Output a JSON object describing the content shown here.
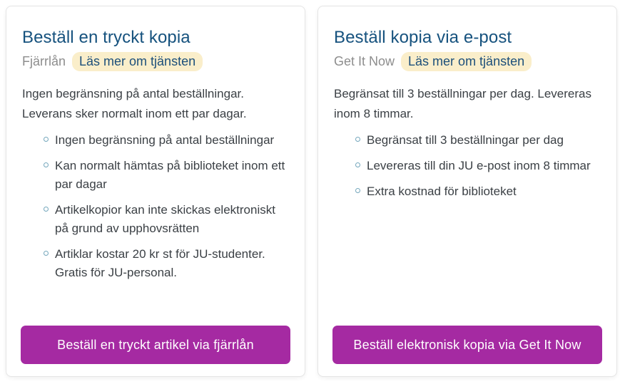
{
  "colors": {
    "title_text": "#16527e",
    "body_text": "#3b4045",
    "muted_text": "#8d8d8d",
    "highlight_bg": "#faeeca",
    "highlight_text": "#1c4f7a",
    "button_bg": "#a52aa2",
    "button_text": "#ffffff",
    "bullet_ring": "#74a7bc",
    "card_border": "#e5e5e5"
  },
  "cards": [
    {
      "title": "Beställ en tryckt kopia",
      "service_label": "Fjärrlån",
      "read_more_label": "Läs mer om tjänsten",
      "intro": "Ingen begränsning på antal beställningar. Leverans sker normalt inom ett par dagar.",
      "bullets": [
        "Ingen begränsning på antal beställningar",
        "Kan normalt hämtas på biblioteket inom ett par dagar",
        "Artikelkopior kan inte skickas elektroniskt på grund av upphovsrätten",
        "Artiklar kostar 20 kr st för JU-studenter. Gratis för JU-personal."
      ],
      "button_label": "Beställ en tryckt artikel via fjärrlån"
    },
    {
      "title": "Beställ kopia via e-post",
      "service_label": "Get It Now",
      "read_more_label": "Läs mer om tjänsten",
      "intro": "Begränsat till 3 beställningar per dag. Levereras inom 8 timmar.",
      "bullets": [
        "Begränsat till 3 beställningar per dag",
        "Levereras till din JU e-post inom 8 timmar",
        "Extra kostnad för biblioteket"
      ],
      "button_label": "Beställ elektronisk kopia via Get It Now"
    }
  ]
}
